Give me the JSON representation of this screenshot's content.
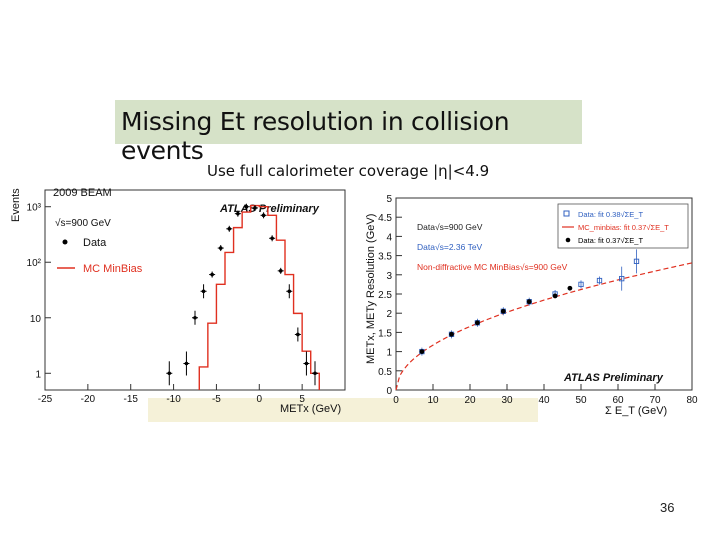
{
  "slide": {
    "title": "Missing Et resolution in collision events",
    "subtitle": "Use full calorimeter coverage |η|<4.9",
    "page_number": "36"
  },
  "chart_data": [
    {
      "type": "histogram",
      "corner_label": "2009 BEAM",
      "preliminary": "ATLAS Preliminary",
      "energy_label": "√s=900 GeV",
      "xlabel": "METx (GeV)",
      "ylabel": "Events",
      "log_y": true,
      "xlim": [
        -25,
        10
      ],
      "ylim": [
        0.5,
        2000
      ],
      "x_ticks": [
        -25,
        -20,
        -15,
        -10,
        -5,
        0,
        5
      ],
      "y_ticks": [
        {
          "v": 1,
          "label": "1"
        },
        {
          "v": 10,
          "label": "10"
        },
        {
          "v": 100,
          "label": "10²"
        },
        {
          "v": 1000,
          "label": "10³"
        }
      ],
      "legend": [
        {
          "name": "Data",
          "color": "#000000",
          "marker": "dot"
        },
        {
          "name": "MC MinBias",
          "color": "#e03020",
          "marker": "line"
        }
      ],
      "series": [
        {
          "name": "Data",
          "x": [
            -10.5,
            -8.5,
            -7.5,
            -6.5,
            -5.5,
            -4.5,
            -3.5,
            -2.5,
            -1.5,
            -0.5,
            0.5,
            1.5,
            2.5,
            3.5,
            4.5,
            5.5,
            6.5
          ],
          "y": [
            1.0,
            1.5,
            10,
            30,
            60,
            180,
            400,
            750,
            1000,
            950,
            700,
            270,
            70,
            30,
            5,
            1.5,
            1.0
          ]
        },
        {
          "name": "MC MinBias",
          "x_edges": [
            -7,
            -6,
            -5,
            -4,
            -3,
            -2,
            -1,
            0,
            1,
            2,
            3,
            4,
            5,
            6,
            7
          ],
          "y": [
            1.3,
            8,
            40,
            150,
            420,
            800,
            1050,
            1000,
            700,
            250,
            60,
            12,
            2.5,
            1
          ]
        }
      ]
    },
    {
      "type": "scatter",
      "preliminary": "ATLAS Preliminary",
      "xlabel": "Σ E_T (GeV)",
      "ylabel": "METx, METy Resolution (GeV)",
      "xlim": [
        0,
        80
      ],
      "ylim": [
        0,
        5
      ],
      "x_ticks": [
        0,
        10,
        20,
        30,
        40,
        50,
        60,
        70,
        80
      ],
      "y_ticks": [
        0,
        0.5,
        1,
        1.5,
        2,
        2.5,
        3,
        3.5,
        4,
        4.5,
        5
      ],
      "legend_text_left": [
        {
          "text": "Data√s=900 GeV",
          "color": "#222222"
        },
        {
          "text": "Data√s=2.36 TeV",
          "color": "#3060c0"
        },
        {
          "text": "Non-diffractive MC MinBias√s=900 GeV",
          "color": "#e03020"
        }
      ],
      "legend_box": [
        {
          "text": "Data: fit 0.38√ΣE_T",
          "color": "#3060c0"
        },
        {
          "text": "MC_minbias: fit 0.37√ΣE_T",
          "color": "#e03020"
        },
        {
          "text": "Data: fit 0.37√ΣE_T",
          "color": "#000000"
        }
      ],
      "series": [
        {
          "name": "Data√s=900 GeV",
          "color": "#000000",
          "x": [
            7,
            15,
            22,
            29,
            36,
            43,
            47
          ],
          "y": [
            1.0,
            1.45,
            1.75,
            2.05,
            2.3,
            2.45,
            2.65
          ]
        },
        {
          "name": "Data√s=2.36 TeV",
          "color": "#3060c0",
          "x": [
            7,
            15,
            22,
            29,
            36,
            43,
            50,
            55,
            61,
            65
          ],
          "y": [
            1.0,
            1.45,
            1.75,
            2.05,
            2.3,
            2.5,
            2.75,
            2.85,
            2.9,
            3.35
          ]
        },
        {
          "name": "fit",
          "color": "#e03020",
          "fit_coefficient": 0.37,
          "dashed": true
        }
      ]
    }
  ]
}
